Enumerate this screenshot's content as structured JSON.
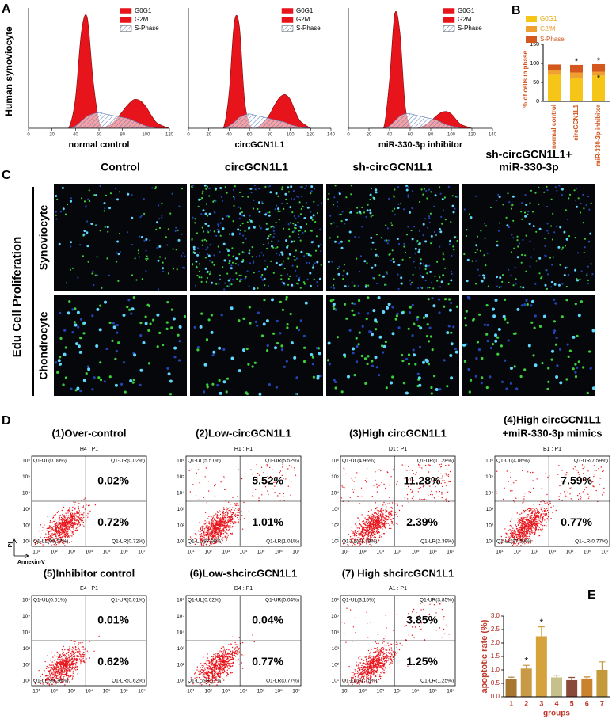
{
  "panel_labels": [
    "A",
    "B",
    "C",
    "D",
    "E"
  ],
  "panel_a_ylabel": "Human synoviocyte",
  "chart_data": [
    {
      "type": "area",
      "xlabel": "normal control",
      "legend": "upper right",
      "x": [
        20,
        30,
        35,
        40,
        45,
        50,
        55,
        60,
        65,
        70,
        75,
        80,
        85,
        90,
        95,
        100,
        105,
        110,
        120
      ],
      "xlim": [
        0,
        120
      ],
      "xticks": [
        0,
        20,
        40,
        60,
        80,
        100,
        120
      ],
      "ylim": [
        0,
        100
      ],
      "series": [
        {
          "name": "G0G1",
          "color": "#e8141b",
          "values": [
            0,
            0,
            2,
            25,
            80,
            92,
            40,
            6,
            0,
            0,
            0,
            0,
            0,
            0,
            0,
            0,
            0,
            0,
            0
          ]
        },
        {
          "name": "G2M",
          "color": "#e8141b",
          "values": [
            0,
            0,
            0,
            0,
            0,
            0,
            0,
            0,
            1,
            3,
            8,
            14,
            20,
            24,
            23,
            18,
            10,
            4,
            0
          ]
        },
        {
          "name": "S-Phase",
          "color": "#5a7ab8",
          "pattern": "hatch",
          "values": [
            0,
            0,
            0,
            2,
            6,
            10,
            12,
            13,
            12,
            11,
            10,
            9,
            8,
            6,
            4,
            2,
            1,
            0,
            0
          ]
        }
      ]
    },
    {
      "type": "area",
      "xlabel": "circGCN1L1",
      "legend": "upper right",
      "x": [
        20,
        30,
        35,
        40,
        45,
        50,
        55,
        60,
        65,
        70,
        75,
        80,
        85,
        90,
        95,
        100,
        105,
        110,
        120
      ],
      "xlim": [
        0,
        140
      ],
      "xticks": [
        0,
        20,
        40,
        60,
        80,
        100,
        120,
        140
      ],
      "ylim": [
        0,
        100
      ],
      "series": [
        {
          "name": "G0G1",
          "color": "#e8141b",
          "values": [
            0,
            0,
            2,
            30,
            88,
            85,
            25,
            3,
            0,
            0,
            0,
            0,
            0,
            0,
            0,
            0,
            0,
            0,
            0
          ]
        },
        {
          "name": "G2M",
          "color": "#e8141b",
          "values": [
            0,
            0,
            0,
            0,
            0,
            0,
            0,
            0,
            0,
            2,
            6,
            12,
            20,
            26,
            28,
            24,
            14,
            6,
            0
          ]
        },
        {
          "name": "S-Phase",
          "color": "#5a7ab8",
          "pattern": "hatch",
          "values": [
            0,
            0,
            0,
            2,
            5,
            9,
            11,
            12,
            11,
            10,
            9,
            8,
            7,
            6,
            5,
            3,
            2,
            1,
            0
          ]
        }
      ]
    },
    {
      "type": "area",
      "xlabel": "miR-330-3p inhibitor",
      "legend": "upper right",
      "x": [
        20,
        30,
        35,
        40,
        45,
        50,
        55,
        60,
        65,
        70,
        75,
        80,
        85,
        90,
        95,
        100,
        105,
        110,
        120
      ],
      "xlim": [
        0,
        140
      ],
      "xticks": [
        0,
        20,
        40,
        60,
        80,
        100,
        120,
        140
      ],
      "ylim": [
        0,
        100
      ],
      "series": [
        {
          "name": "G0G1",
          "color": "#e8141b",
          "values": [
            0,
            0,
            3,
            40,
            95,
            80,
            20,
            2,
            0,
            0,
            0,
            0,
            0,
            0,
            0,
            0,
            0,
            0,
            0
          ]
        },
        {
          "name": "G2M",
          "color": "#e8141b",
          "values": [
            0,
            0,
            0,
            0,
            0,
            0,
            0,
            0,
            0,
            1,
            3,
            6,
            10,
            13,
            14,
            12,
            7,
            3,
            0
          ]
        },
        {
          "name": "S-Phase",
          "color": "#5a7ab8",
          "pattern": "hatch",
          "values": [
            0,
            0,
            0,
            2,
            6,
            10,
            12,
            12,
            11,
            10,
            9,
            8,
            7,
            5,
            3,
            2,
            1,
            0,
            0
          ]
        }
      ]
    },
    {
      "type": "stacked_bar",
      "ylabel": "% of cells in phase",
      "categories": [
        "normal control",
        "circGCN1L1",
        "miR-330-3p inhibitor"
      ],
      "ylim": [
        0,
        150
      ],
      "yticks": [
        0,
        50,
        100,
        150
      ],
      "annotations": [
        [],
        [
          "*"
        ],
        [
          "*",
          "*"
        ]
      ],
      "series": [
        {
          "name": "G0G1",
          "color": "#f5c518",
          "values": [
            70,
            62,
            68
          ]
        },
        {
          "name": "G2/M",
          "color": "#f0a030",
          "values": [
            12,
            14,
            10
          ]
        },
        {
          "name": "S-Phase",
          "color": "#d4571e",
          "values": [
            15,
            20,
            20
          ]
        }
      ]
    },
    {
      "type": "bar",
      "ylabel": "apoptotic rate (%)",
      "xlabel": "groups",
      "categories": [
        "1",
        "2",
        "3",
        "4",
        "5",
        "6",
        "7"
      ],
      "values": [
        0.65,
        1.05,
        2.25,
        0.72,
        0.62,
        0.68,
        1.0
      ],
      "errors": [
        0.08,
        0.12,
        0.35,
        0.08,
        0.1,
        0.06,
        0.3
      ],
      "colors": [
        "#a8772f",
        "#c99a45",
        "#d6a23c",
        "#c8c08a",
        "#8a4a3a",
        "#c9832e",
        "#c49a3a"
      ],
      "annotations": [
        null,
        "*",
        "*",
        null,
        null,
        null,
        null
      ],
      "ylim": [
        0,
        3.0
      ],
      "yticks": [
        {
          "value": 0,
          "label": "0.0"
        },
        0.5,
        {
          "value": 1,
          "label": "1.0"
        },
        1.5,
        {
          "value": 2,
          "label": "2.0"
        },
        2.5,
        {
          "value": 3,
          "label": "3.0"
        }
      ]
    }
  ],
  "panel_c": {
    "columns": [
      [
        "Control"
      ],
      [
        "circGCN1L1"
      ],
      [
        "sh-circGCN1L1"
      ],
      [
        "sh-circGCN1L1+",
        "miR-330-3p"
      ]
    ],
    "rows": [
      "Synoviocyte",
      "Chondrocyte"
    ],
    "side_label": "Edu Cell Proliferation"
  },
  "panel_d": {
    "xlabel": "Annexin-V",
    "ylabel": "PI",
    "xticks": [
      "10¹",
      "10²",
      "10³",
      "10⁴",
      "10⁵",
      "10⁶",
      "10⁷"
    ],
    "yticks": [
      "10¹",
      "10²",
      "10³",
      "10⁴",
      "10⁵",
      "10⁶"
    ],
    "plots": [
      {
        "title": [
          "(1)Over-control"
        ],
        "gate": "H4 : P1",
        "quadrants": [
          "Q1-UL(0.00%)",
          "Q1-UR(0.02%)",
          "Q1-LL(99.27%)",
          "Q1-LR(0.72%)"
        ],
        "upper_right": "0.02%",
        "lower_right": "0.72%"
      },
      {
        "title": [
          "(2)Low-circGCN1L1"
        ],
        "gate": "H1 : P1",
        "quadrants": [
          "Q1-UL(5.51%)",
          "Q1-UR(5.52%)",
          "Q1-LL(87.96%)",
          "Q1-LR(1.01%)"
        ],
        "upper_right": "5.52%",
        "lower_right": "1.01%"
      },
      {
        "title": [
          "(3)High circGCN1L1"
        ],
        "gate": "D1 : P1",
        "quadrants": [
          "Q1-UL(4.96%)",
          "Q1-UR(11.28%)",
          "Q1-LL(81.38%)",
          "Q1-LR(2.39%)"
        ],
        "upper_right": "11.28%",
        "lower_right": "2.39%"
      },
      {
        "title": [
          "(4)High circGCN1L1",
          "+miR-330-3p mimics"
        ],
        "gate": "B1 : P1",
        "quadrants": [
          "Q1-UL(4.06%)",
          "Q1-UR(7.59%)",
          "Q1-LL(87.58%)",
          "Q1-LR(0.77%)"
        ],
        "upper_right": "7.59%",
        "lower_right": "0.77%"
      },
      {
        "title": [
          "(5)Inhibitor control"
        ],
        "gate": "E4 : P1",
        "quadrants": [
          "Q1-UL(0.01%)",
          "Q1-UR(0.01%)",
          "Q1-LL(99.36%)",
          "Q1-LR(0.62%)"
        ],
        "upper_right": "0.01%",
        "lower_right": "0.62%"
      },
      {
        "title": [
          "(6)Low-shcircGCN1L1"
        ],
        "gate": "D4 : P1",
        "quadrants": [
          "Q1-UL(0.02%)",
          "Q1-UR(0.04%)",
          "Q1-LL(99.17%)",
          "Q1-LR(0.77%)"
        ],
        "upper_right": "0.04%",
        "lower_right": "0.77%"
      },
      {
        "title": [
          "(7) High shcircGCN1L1"
        ],
        "gate": "A1 : P1",
        "quadrants": [
          "Q1-UL(3.15%)",
          "Q1-UR(3.85%)",
          "Q1-LL(91.75%)",
          "Q1-LR(1.25%)"
        ],
        "upper_right": "3.85%",
        "lower_right": "1.25%"
      }
    ]
  }
}
